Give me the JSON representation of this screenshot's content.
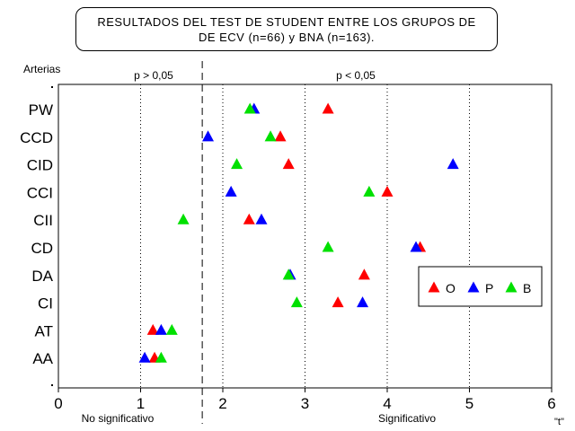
{
  "chart_data": {
    "type": "scatter",
    "title_lines": [
      "RESULTADOS DEL TEST DE STUDENT ENTRE LOS GRUPOS DE",
      "DE ECV (n=66) y BNA (n=163)."
    ],
    "ylabel": "Arterias",
    "xlabel": "\"t\"",
    "xlim": [
      0,
      6
    ],
    "x_ticks": [
      "0",
      "1",
      "2",
      "3",
      "4",
      "5",
      "6"
    ],
    "categories": [
      "PW",
      "CCD",
      "CID",
      "CCI",
      "CII",
      "CD",
      "DA",
      "CI",
      "AT",
      "AA"
    ],
    "threshold": 1.75,
    "dotted_gridlines_x": [
      1,
      2,
      3,
      4,
      5
    ],
    "region_labels": {
      "left_top": "p > 0,05",
      "right_top": "p < 0,05",
      "left_bottom": "No significativo",
      "right_bottom": "Significativo"
    },
    "legend_position": "right",
    "series": [
      {
        "name": "O",
        "color": "#ff0000",
        "values": [
          3.28,
          2.7,
          2.8,
          4.0,
          2.32,
          4.4,
          3.72,
          3.4,
          1.15,
          1.17
        ]
      },
      {
        "name": "P",
        "color": "#0000ff",
        "values": [
          2.38,
          1.82,
          4.8,
          2.1,
          2.47,
          4.35,
          2.82,
          3.7,
          1.25,
          1.05
        ]
      },
      {
        "name": "B",
        "color": "#00e000",
        "values": [
          2.33,
          2.58,
          2.17,
          3.78,
          1.52,
          3.28,
          2.8,
          2.9,
          1.38,
          1.25
        ]
      }
    ]
  }
}
